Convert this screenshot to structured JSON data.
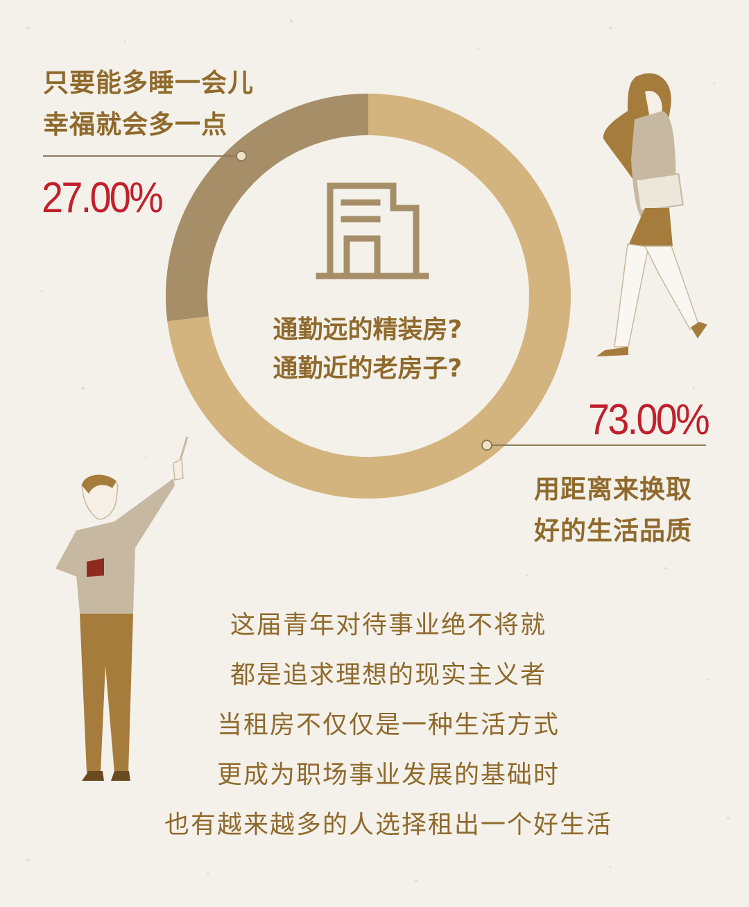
{
  "chart_data": {
    "type": "pie",
    "style": "donut",
    "slices": [
      {
        "label_lines": [
          "只要能多睡一会儿",
          "幸福就会多一点"
        ],
        "value": 27.0,
        "value_text": "27.00%",
        "color": "#a68e68"
      },
      {
        "label_lines": [
          "用距离来换取",
          "好的生活品质"
        ],
        "value": 73.0,
        "value_text": "73.00%",
        "color": "#d3b47e"
      }
    ],
    "center_lines": [
      "通勤远的精装房?",
      "通勤近的老房子?"
    ]
  },
  "body_lines": [
    "这届青年对待事业绝不将就",
    "都是追求理想的现实主义者",
    "当租房不仅仅是一种生活方式",
    "更成为职场事业发展的基础时",
    "也有越来越多的人选择租出一个好生活"
  ],
  "colors": {
    "accent_text": "#8f6a2c",
    "percent": "#c0202c",
    "background": "#f4f1eb"
  },
  "icons": [
    "building-icon",
    "walking-woman-illustration",
    "pointing-man-illustration"
  ]
}
